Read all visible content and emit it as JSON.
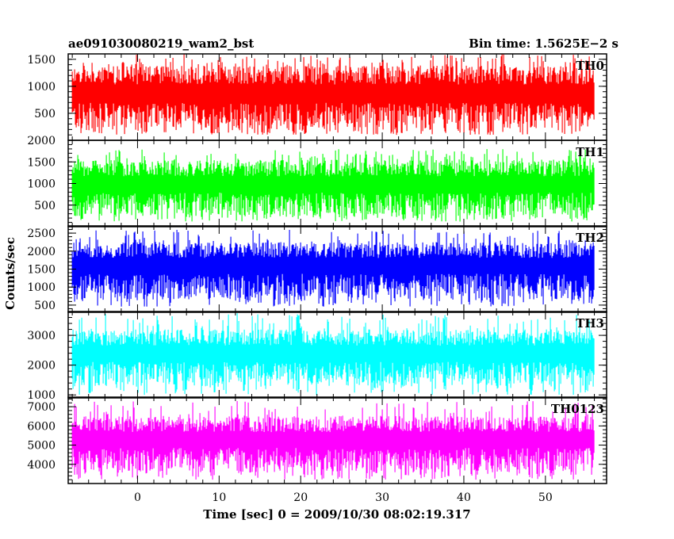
{
  "chart_data": {
    "type": "line",
    "title": "ae091030080219_wam2_bst",
    "subtitle": "Bin time: 1.5625E−2 s",
    "xlabel": "Time [sec] 0 = 2009/10/30 08:02:19.317",
    "ylabel": "Counts/sec",
    "xlim": [
      -8.5,
      57.5
    ],
    "x_range_data": [
      -8,
      56
    ],
    "x_ticks": [
      0,
      10,
      20,
      30,
      40,
      50
    ],
    "panels": [
      {
        "name": "TH0",
        "color": "#ff0000",
        "ylim": [
          0,
          1600
        ],
        "y_ticks": [
          500,
          1000,
          1500
        ],
        "mean": 750,
        "band_low": 180,
        "band_high": 1380,
        "spike_low": 100,
        "spike_high": 1600
      },
      {
        "name": "TH1",
        "color": "#00ff00",
        "ylim": [
          0,
          2000
        ],
        "y_ticks": [
          500,
          1000,
          1500,
          2000
        ],
        "mean": 850,
        "band_low": 250,
        "band_high": 1550,
        "spike_low": 120,
        "spike_high": 1800
      },
      {
        "name": "TH2",
        "color": "#0000ff",
        "ylim": [
          300,
          2700
        ],
        "y_ticks": [
          500,
          1000,
          1500,
          2000,
          2500
        ],
        "mean": 1450,
        "band_low": 650,
        "band_high": 2250,
        "spike_low": 450,
        "spike_high": 2600
      },
      {
        "name": "TH3",
        "color": "#00ffff",
        "ylim": [
          900,
          3800
        ],
        "y_ticks": [
          1000,
          2000,
          3000
        ],
        "mean": 2200,
        "band_low": 1300,
        "band_high": 3200,
        "spike_low": 1000,
        "spike_high": 3750
      },
      {
        "name": "TH0123",
        "color": "#ff00ff",
        "ylim": [
          3000,
          7500
        ],
        "y_ticks": [
          4000,
          5000,
          6000,
          7000
        ],
        "mean": 5000,
        "band_low": 3600,
        "band_high": 6500,
        "spike_low": 3200,
        "spike_high": 7300
      }
    ]
  }
}
